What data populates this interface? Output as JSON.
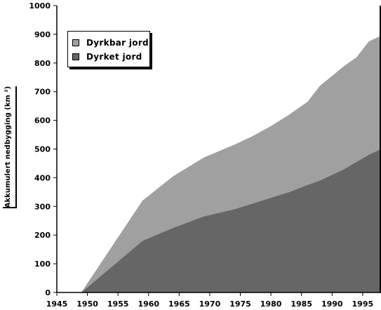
{
  "chart_data": {
    "type": "area",
    "stacked": true,
    "title": "",
    "xlabel": "",
    "ylabel": "Akkumulert nedbygging (km ²)",
    "xlim": [
      1945,
      1998
    ],
    "ylim": [
      0,
      1000
    ],
    "x_ticks": [
      1945,
      1950,
      1955,
      1960,
      1965,
      1970,
      1975,
      1980,
      1985,
      1990,
      1995
    ],
    "y_ticks": [
      0,
      100,
      200,
      300,
      400,
      500,
      600,
      700,
      800,
      900,
      1000
    ],
    "grid": false,
    "legend_position": "top-left",
    "series": [
      {
        "name": "Dyrket jord",
        "color": "#666666",
        "x": [
          1949,
          1954,
          1959,
          1964,
          1969,
          1974,
          1977,
          1980,
          1983,
          1986,
          1988,
          1990,
          1992,
          1994,
          1996,
          1998
        ],
        "values": [
          0,
          90,
          180,
          225,
          265,
          290,
          310,
          330,
          350,
          375,
          390,
          410,
          430,
          455,
          480,
          500
        ]
      },
      {
        "name": "Dyrkbar jord",
        "color": "#a0a0a0",
        "x": [
          1949,
          1954,
          1959,
          1964,
          1969,
          1974,
          1977,
          1980,
          1983,
          1986,
          1988,
          1990,
          1992,
          1994,
          1996,
          1998
        ],
        "values": [
          0,
          70,
          140,
          180,
          205,
          225,
          235,
          250,
          270,
          290,
          330,
          345,
          360,
          365,
          395,
          395
        ]
      }
    ]
  }
}
